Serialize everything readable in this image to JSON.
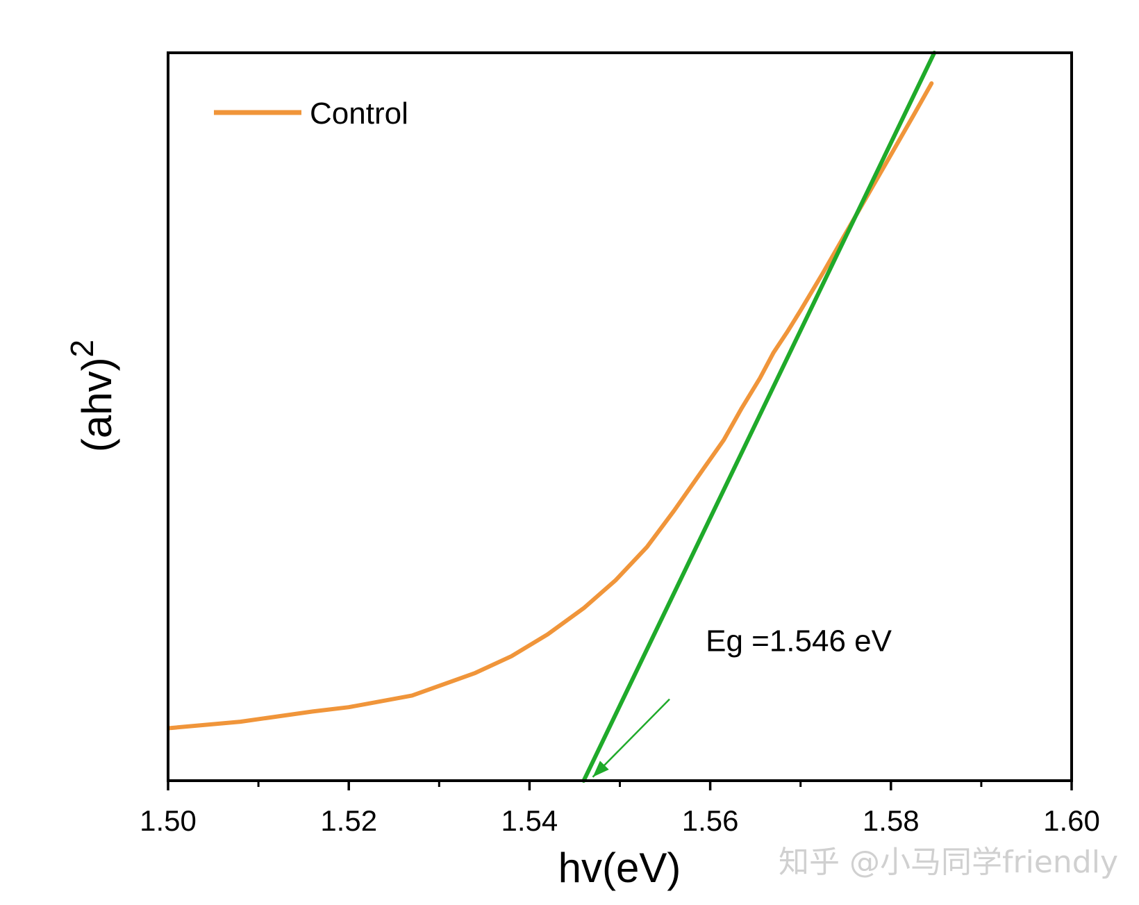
{
  "chart_data": {
    "type": "line",
    "xlabel": "hv(eV)",
    "ylabel_base": "(ahv)",
    "ylabel_sup": "2",
    "xlim": [
      1.5,
      1.6
    ],
    "ylim": [
      0,
      1
    ],
    "x_ticks": [
      1.5,
      1.52,
      1.54,
      1.56,
      1.58,
      1.6
    ],
    "x_tick_labels": [
      "1.50",
      "1.52",
      "1.54",
      "1.56",
      "1.58",
      "1.60"
    ],
    "x_minor_ticks": [
      1.51,
      1.53,
      1.55,
      1.57,
      1.59
    ],
    "y_ticks_shown": false,
    "grid": false,
    "legend_position": "top-left",
    "series": [
      {
        "name": "Control",
        "color": "#f0953a",
        "x": [
          1.5,
          1.508,
          1.516,
          1.52,
          1.527,
          1.534,
          1.538,
          1.542,
          1.546,
          1.5495,
          1.553,
          1.556,
          1.559,
          1.5615,
          1.5635,
          1.5655,
          1.567,
          1.5685,
          1.57,
          1.5725,
          1.575,
          1.5775,
          1.58,
          1.5825,
          1.5845
        ],
        "y": [
          0.072,
          0.081,
          0.095,
          0.101,
          0.117,
          0.148,
          0.171,
          0.201,
          0.237,
          0.275,
          0.321,
          0.371,
          0.424,
          0.468,
          0.512,
          0.553,
          0.588,
          0.616,
          0.646,
          0.698,
          0.752,
          0.806,
          0.86,
          0.914,
          0.958
        ]
      }
    ],
    "tangent_line": {
      "color": "#1faa2a",
      "x": [
        1.546,
        1.5848
      ],
      "y": [
        0.0,
        1.0
      ]
    },
    "annotations": [
      {
        "text": "Eg =1.546 eV",
        "x": 1.5595,
        "y": 0.178
      },
      {
        "type": "arrow",
        "color": "#1faa2a",
        "from": [
          1.5555,
          0.112
        ],
        "to": [
          1.547,
          0.005
        ]
      }
    ],
    "watermark": "知乎 @小马同学friendly"
  }
}
